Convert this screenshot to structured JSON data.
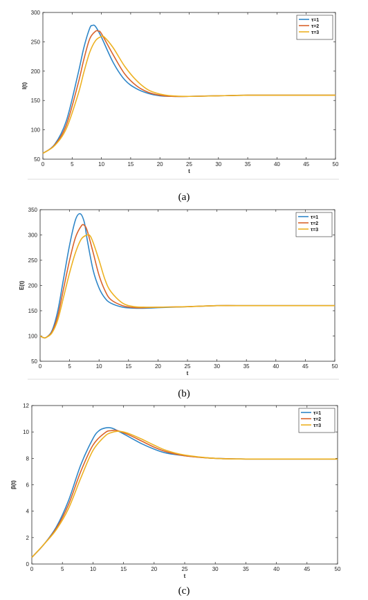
{
  "chart_data": [
    {
      "type": "line",
      "caption": "(a)",
      "xlabel": "t",
      "ylabel": "I(t)",
      "xlim": [
        0,
        50
      ],
      "ylim": [
        50,
        300
      ],
      "xticks": [
        0,
        5,
        10,
        15,
        20,
        25,
        30,
        35,
        40,
        45,
        50
      ],
      "yticks": [
        50,
        100,
        150,
        200,
        250,
        300
      ],
      "legend": "top-right",
      "series": [
        {
          "name": "τ=1",
          "color": "#2e86c8",
          "points": [
            [
              0,
              60
            ],
            [
              2,
              75
            ],
            [
              4,
              115
            ],
            [
              6,
              195
            ],
            [
              7,
              240
            ],
            [
              8,
              273
            ],
            [
              8.5,
              278
            ],
            [
              9,
              276
            ],
            [
              10,
              258
            ],
            [
              12,
              215
            ],
            [
              14,
              185
            ],
            [
              16,
              170
            ],
            [
              18,
              162
            ],
            [
              20,
              158
            ],
            [
              22,
              157
            ],
            [
              25,
              157
            ],
            [
              30,
              158
            ],
            [
              35,
              159
            ],
            [
              40,
              159
            ],
            [
              45,
              159
            ],
            [
              50,
              159
            ]
          ]
        },
        {
          "name": "τ=2",
          "color": "#d9622b",
          "points": [
            [
              0,
              60
            ],
            [
              2,
              74
            ],
            [
              4,
              108
            ],
            [
              6,
              178
            ],
            [
              7,
              220
            ],
            [
              8,
              255
            ],
            [
              9,
              268
            ],
            [
              9.5,
              268
            ],
            [
              10,
              264
            ],
            [
              12,
              228
            ],
            [
              14,
              195
            ],
            [
              16,
              175
            ],
            [
              18,
              164
            ],
            [
              20,
              159
            ],
            [
              22,
              157
            ],
            [
              25,
              157
            ],
            [
              30,
              158
            ],
            [
              35,
              159
            ],
            [
              40,
              159
            ],
            [
              45,
              159
            ],
            [
              50,
              159
            ]
          ]
        },
        {
          "name": "τ=3",
          "color": "#edb120",
          "points": [
            [
              0,
              60
            ],
            [
              2,
              73
            ],
            [
              4,
              102
            ],
            [
              6,
              160
            ],
            [
              7,
              198
            ],
            [
              8,
              232
            ],
            [
              9,
              252
            ],
            [
              10,
              259
            ],
            [
              10.5,
              258
            ],
            [
              12,
              240
            ],
            [
              14,
              208
            ],
            [
              16,
              184
            ],
            [
              18,
              168
            ],
            [
              20,
              161
            ],
            [
              22,
              158
            ],
            [
              25,
              157
            ],
            [
              30,
              158
            ],
            [
              35,
              159
            ],
            [
              40,
              159
            ],
            [
              45,
              159
            ],
            [
              50,
              159
            ]
          ]
        }
      ]
    },
    {
      "type": "line",
      "caption": "(b)",
      "xlabel": "t",
      "ylabel": "E(t)",
      "xlim": [
        0,
        50
      ],
      "ylim": [
        50,
        350
      ],
      "xticks": [
        0,
        5,
        10,
        15,
        20,
        25,
        30,
        35,
        40,
        45,
        50
      ],
      "yticks": [
        50,
        100,
        150,
        200,
        250,
        300,
        350
      ],
      "legend": "top-right",
      "series": [
        {
          "name": "τ=1",
          "color": "#2e86c8",
          "points": [
            [
              0,
              100
            ],
            [
              0.5,
              97
            ],
            [
              1,
              97
            ],
            [
              2,
              110
            ],
            [
              3,
              150
            ],
            [
              4,
              215
            ],
            [
              5,
              280
            ],
            [
              6,
              330
            ],
            [
              6.8,
              342
            ],
            [
              7.5,
              325
            ],
            [
              8,
              290
            ],
            [
              9,
              230
            ],
            [
              10,
              195
            ],
            [
              11,
              175
            ],
            [
              12,
              165
            ],
            [
              14,
              157
            ],
            [
              16,
              155
            ],
            [
              18,
              155
            ],
            [
              20,
              156
            ],
            [
              25,
              158
            ],
            [
              30,
              160
            ],
            [
              35,
              160
            ],
            [
              40,
              160
            ],
            [
              45,
              160
            ],
            [
              50,
              160
            ]
          ]
        },
        {
          "name": "τ=2",
          "color": "#d9622b",
          "points": [
            [
              0,
              100
            ],
            [
              0.5,
              97
            ],
            [
              1,
              97
            ],
            [
              2,
              108
            ],
            [
              3,
              140
            ],
            [
              4,
              195
            ],
            [
              5,
              250
            ],
            [
              6,
              295
            ],
            [
              7,
              318
            ],
            [
              7.5,
              319
            ],
            [
              8,
              308
            ],
            [
              9,
              265
            ],
            [
              10,
              220
            ],
            [
              11,
              190
            ],
            [
              12,
              172
            ],
            [
              14,
              160
            ],
            [
              16,
              156
            ],
            [
              18,
              156
            ],
            [
              20,
              157
            ],
            [
              25,
              158
            ],
            [
              30,
              160
            ],
            [
              35,
              160
            ],
            [
              40,
              160
            ],
            [
              45,
              160
            ],
            [
              50,
              160
            ]
          ]
        },
        {
          "name": "τ=3",
          "color": "#edb120",
          "points": [
            [
              0,
              100
            ],
            [
              0.5,
              97
            ],
            [
              1,
              97
            ],
            [
              2,
              106
            ],
            [
              3,
              132
            ],
            [
              4,
              178
            ],
            [
              5,
              225
            ],
            [
              6,
              265
            ],
            [
              7,
              292
            ],
            [
              8,
              300
            ],
            [
              8.5,
              298
            ],
            [
              9,
              285
            ],
            [
              10,
              250
            ],
            [
              11,
              212
            ],
            [
              12,
              188
            ],
            [
              14,
              165
            ],
            [
              16,
              158
            ],
            [
              18,
              157
            ],
            [
              20,
              157
            ],
            [
              25,
              158
            ],
            [
              30,
              160
            ],
            [
              35,
              160
            ],
            [
              40,
              160
            ],
            [
              45,
              160
            ],
            [
              50,
              160
            ]
          ]
        }
      ]
    },
    {
      "type": "line",
      "caption": "(c)",
      "xlabel": "t",
      "ylabel": "β(t)",
      "xlim": [
        0,
        50
      ],
      "ylim": [
        0,
        12
      ],
      "xticks": [
        0,
        5,
        10,
        15,
        20,
        25,
        30,
        35,
        40,
        45,
        50
      ],
      "yticks": [
        0,
        2,
        4,
        6,
        8,
        10,
        12
      ],
      "legend": "top-right",
      "series": [
        {
          "name": "τ=1",
          "color": "#2e86c8",
          "points": [
            [
              0,
              0.5
            ],
            [
              2,
              1.5
            ],
            [
              4,
              2.8
            ],
            [
              6,
              4.8
            ],
            [
              8,
              7.5
            ],
            [
              10,
              9.5
            ],
            [
              11,
              10.1
            ],
            [
              12,
              10.3
            ],
            [
              13,
              10.3
            ],
            [
              14,
              10.1
            ],
            [
              16,
              9.6
            ],
            [
              18,
              9.1
            ],
            [
              20,
              8.7
            ],
            [
              22,
              8.4
            ],
            [
              25,
              8.2
            ],
            [
              30,
              8.0
            ],
            [
              35,
              7.95
            ],
            [
              40,
              7.95
            ],
            [
              45,
              7.95
            ],
            [
              50,
              7.95
            ]
          ]
        },
        {
          "name": "τ=2",
          "color": "#d9622b",
          "points": [
            [
              0,
              0.5
            ],
            [
              2,
              1.5
            ],
            [
              4,
              2.7
            ],
            [
              6,
              4.5
            ],
            [
              8,
              7.0
            ],
            [
              10,
              9.0
            ],
            [
              12,
              9.95
            ],
            [
              13,
              10.1
            ],
            [
              14,
              10.1
            ],
            [
              16,
              9.75
            ],
            [
              18,
              9.3
            ],
            [
              20,
              8.85
            ],
            [
              22,
              8.5
            ],
            [
              25,
              8.2
            ],
            [
              30,
              8.0
            ],
            [
              35,
              7.95
            ],
            [
              40,
              7.95
            ],
            [
              45,
              7.95
            ],
            [
              50,
              7.95
            ]
          ]
        },
        {
          "name": "τ=3",
          "color": "#edb120",
          "points": [
            [
              0,
              0.5
            ],
            [
              2,
              1.5
            ],
            [
              4,
              2.6
            ],
            [
              6,
              4.2
            ],
            [
              8,
              6.5
            ],
            [
              10,
              8.6
            ],
            [
              12,
              9.7
            ],
            [
              13,
              9.95
            ],
            [
              14,
              10.05
            ],
            [
              15,
              10.0
            ],
            [
              16,
              9.85
            ],
            [
              18,
              9.45
            ],
            [
              20,
              9.0
            ],
            [
              22,
              8.6
            ],
            [
              25,
              8.25
            ],
            [
              30,
              8.0
            ],
            [
              35,
              7.95
            ],
            [
              40,
              7.95
            ],
            [
              45,
              7.95
            ],
            [
              50,
              7.95
            ]
          ]
        }
      ]
    }
  ]
}
